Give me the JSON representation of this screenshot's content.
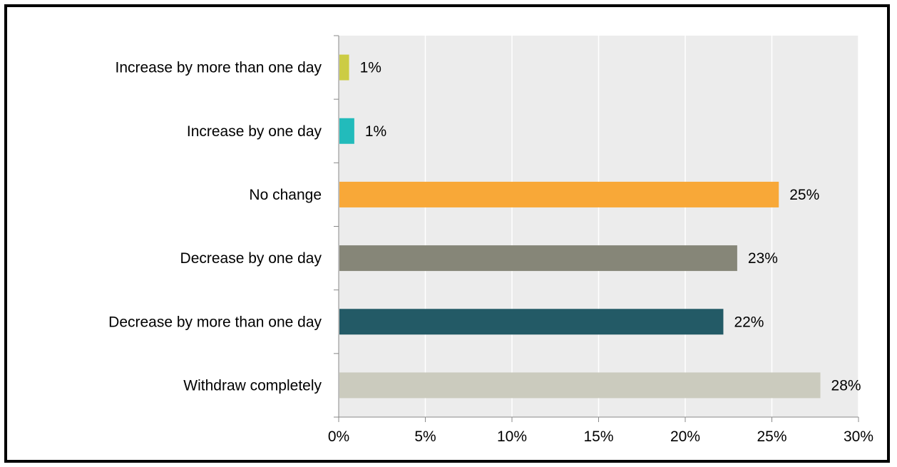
{
  "chart_data": {
    "type": "bar",
    "orientation": "horizontal",
    "categories": [
      "Increase by more than one day",
      "Increase by one day",
      "No change",
      "Decrease by one day",
      "Decrease by more than one day",
      "Withdraw completely"
    ],
    "values": [
      0.6,
      0.9,
      25.4,
      23.0,
      22.2,
      27.8
    ],
    "value_labels": [
      "1%",
      "1%",
      "25%",
      "23%",
      "22%",
      "28%"
    ],
    "colors": [
      "#cccc44",
      "#22bbbb",
      "#f8a838",
      "#868678",
      "#235a66",
      "#cbcbbe"
    ],
    "xlim": [
      0,
      30
    ],
    "xticks": [
      0,
      5,
      10,
      15,
      20,
      25,
      30
    ],
    "xtick_labels": [
      "0%",
      "5%",
      "10%",
      "15%",
      "20%",
      "25%",
      "30%"
    ],
    "xlabel": "",
    "ylabel": "",
    "title": "",
    "grid": true,
    "legend": false,
    "plot_background": "#ececec",
    "gridline_color": "#ffffff"
  }
}
